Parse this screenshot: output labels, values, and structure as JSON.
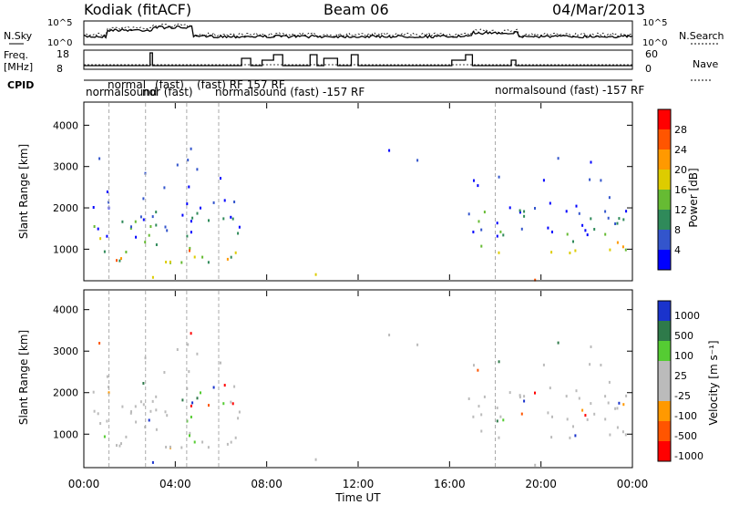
{
  "header": {
    "title": "Kodiak (fitACF)",
    "beam": "Beam 06",
    "date": "04/Mar/2013"
  },
  "top_panel": {
    "left_label": "N.Sky",
    "right_label": "N.Search",
    "ticks_left": [
      "10^5",
      "10^0"
    ],
    "ticks_right": [
      "10^5",
      "10^0"
    ]
  },
  "freq_panel": {
    "left_label_1": "Freq.",
    "left_label_2": "[MHz]",
    "right_label": "Nave",
    "ticks_left": [
      "18",
      "8"
    ],
    "ticks_right": [
      "60",
      "0"
    ]
  },
  "cpid": {
    "label": "CPID",
    "texts": [
      "normal",
      "(fast)",
      "(fast) RF 157 RF",
      "normalsound (fast) -157 RF",
      "normalsound",
      "nor (fast)",
      "normalsound (fast) -157 RF",
      "normalsound (fast) -157 RF"
    ]
  },
  "colors": {
    "power": [
      "#0000ff",
      "#3355cc",
      "#2f8a5a",
      "#66bb33",
      "#ddcc00",
      "#ff9900",
      "#ff5500",
      "#ff0000"
    ],
    "velocity": [
      "#1a33cc",
      "#2e7a4a",
      "#55cc33",
      "#bbbbbb",
      "#bbbbbb",
      "#ff9900",
      "#ff5500",
      "#ff0000"
    ]
  },
  "chart_data": [
    {
      "type": "heatmap",
      "title": "Power",
      "xlabel": "Time UT",
      "ylabel": "Slant Range [km]",
      "y_ticks": [
        "1000",
        "2000",
        "3000",
        "4000"
      ],
      "colorbar_label": "Power [dB]",
      "colorbar_ticks": [
        "4",
        "8",
        "12",
        "16",
        "20",
        "24",
        "28"
      ]
    },
    {
      "type": "heatmap",
      "title": "Velocity",
      "xlabel": "Time UT",
      "ylabel": "Slant Range [km]",
      "y_ticks": [
        "1000",
        "2000",
        "3000",
        "4000"
      ],
      "x_ticks": [
        "00:00",
        "04:00",
        "08:00",
        "12:00",
        "16:00",
        "20:00",
        "00:00"
      ],
      "colorbar_label": "Velocity [m s⁻¹]",
      "colorbar_ticks": [
        "1000",
        "500",
        "100",
        "25",
        "-25",
        "-100",
        "-500",
        "-1000"
      ]
    }
  ]
}
